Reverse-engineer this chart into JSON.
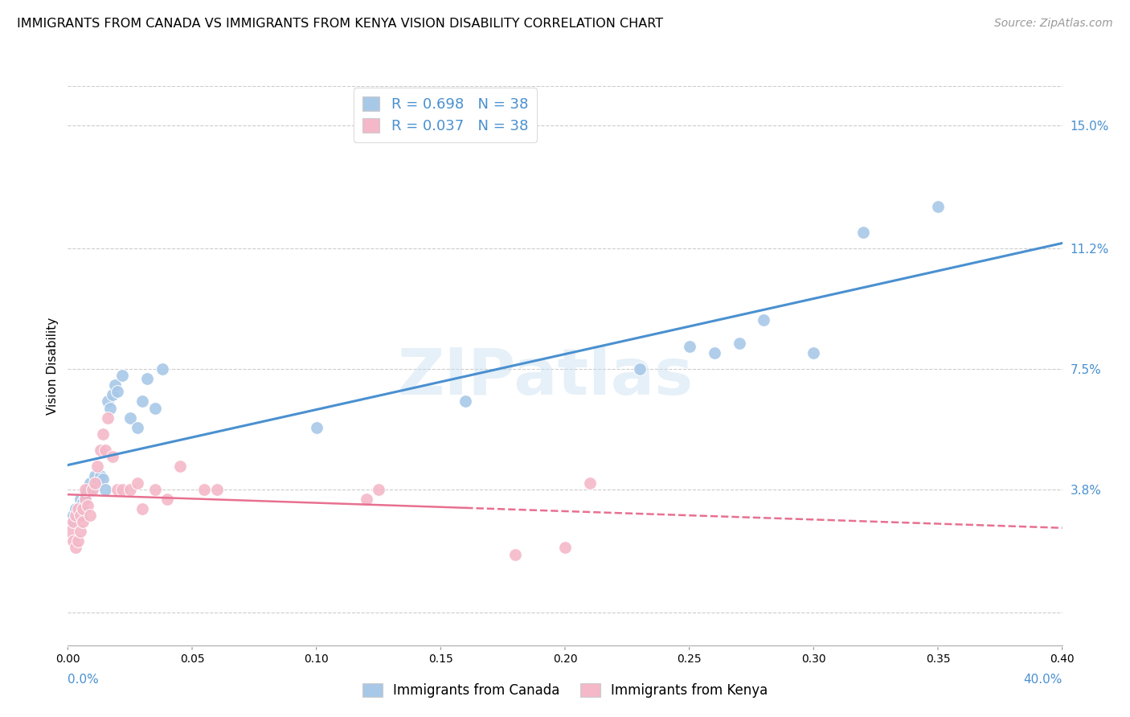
{
  "title": "IMMIGRANTS FROM CANADA VS IMMIGRANTS FROM KENYA VISION DISABILITY CORRELATION CHART",
  "source": "Source: ZipAtlas.com",
  "ylabel": "Vision Disability",
  "yticks": [
    0.0,
    0.038,
    0.075,
    0.112,
    0.15
  ],
  "ytick_labels": [
    "",
    "3.8%",
    "7.5%",
    "11.2%",
    "15.0%"
  ],
  "xlim": [
    0.0,
    0.4
  ],
  "ylim": [
    -0.01,
    0.162
  ],
  "canada_R": 0.698,
  "canada_N": 38,
  "kenya_R": 0.037,
  "kenya_N": 38,
  "canada_color": "#a8c8e8",
  "kenya_color": "#f4b8c8",
  "canada_line_color": "#4a90d0",
  "kenya_line_color": "#e87090",
  "watermark": "ZIPatlas",
  "canada_x": [
    0.001,
    0.002,
    0.003,
    0.004,
    0.005,
    0.005,
    0.006,
    0.007,
    0.008,
    0.009,
    0.01,
    0.011,
    0.012,
    0.013,
    0.014,
    0.015,
    0.016,
    0.017,
    0.018,
    0.019,
    0.02,
    0.022,
    0.025,
    0.028,
    0.03,
    0.032,
    0.035,
    0.038,
    0.1,
    0.16,
    0.23,
    0.25,
    0.26,
    0.27,
    0.28,
    0.3,
    0.32,
    0.35
  ],
  "canada_y": [
    0.028,
    0.03,
    0.032,
    0.03,
    0.033,
    0.035,
    0.034,
    0.036,
    0.038,
    0.04,
    0.038,
    0.042,
    0.04,
    0.042,
    0.041,
    0.038,
    0.065,
    0.063,
    0.067,
    0.07,
    0.068,
    0.073,
    0.06,
    0.057,
    0.065,
    0.072,
    0.063,
    0.075,
    0.057,
    0.065,
    0.075,
    0.082,
    0.08,
    0.083,
    0.09,
    0.08,
    0.117,
    0.125
  ],
  "kenya_x": [
    0.001,
    0.002,
    0.002,
    0.003,
    0.003,
    0.004,
    0.004,
    0.005,
    0.005,
    0.006,
    0.006,
    0.007,
    0.007,
    0.008,
    0.009,
    0.01,
    0.011,
    0.012,
    0.013,
    0.014,
    0.015,
    0.016,
    0.018,
    0.02,
    0.022,
    0.025,
    0.028,
    0.03,
    0.035,
    0.04,
    0.045,
    0.055,
    0.06,
    0.12,
    0.125,
    0.18,
    0.2,
    0.21
  ],
  "kenya_y": [
    0.025,
    0.022,
    0.028,
    0.02,
    0.03,
    0.022,
    0.032,
    0.025,
    0.03,
    0.028,
    0.032,
    0.035,
    0.038,
    0.033,
    0.03,
    0.038,
    0.04,
    0.045,
    0.05,
    0.055,
    0.05,
    0.06,
    0.048,
    0.038,
    0.038,
    0.038,
    0.04,
    0.032,
    0.038,
    0.035,
    0.045,
    0.038,
    0.038,
    0.035,
    0.038,
    0.018,
    0.02,
    0.04
  ]
}
